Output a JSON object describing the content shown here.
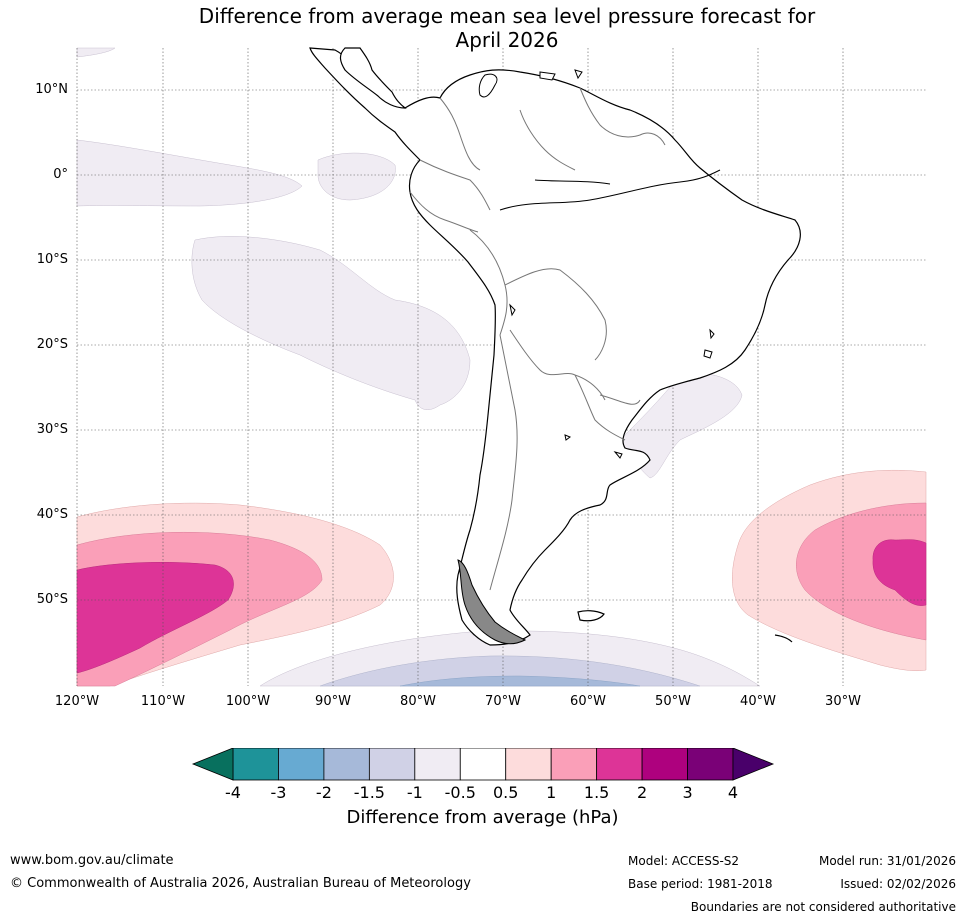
{
  "title_line1": "Difference from average mean sea level pressure forecast for",
  "title_line2": "April 2026",
  "lat_labels": [
    "10°N",
    "0°",
    "10°S",
    "20°S",
    "30°S",
    "40°S",
    "50°S"
  ],
  "lon_labels": [
    "120°W",
    "110°W",
    "100°W",
    "90°W",
    "80°W",
    "70°W",
    "60°W",
    "50°W",
    "40°W",
    "30°W"
  ],
  "colorbar": {
    "ticks": [
      "-4",
      "-3",
      "-2",
      "-1.5",
      "-1",
      "-0.5",
      "0.5",
      "1",
      "1.5",
      "2",
      "3",
      "4"
    ],
    "colors": [
      "#1e9399",
      "#67aad2",
      "#a6b9d9",
      "#d0d1e6",
      "#f0ecf3",
      "#ffffff",
      "#fddcdc",
      "#fa9fb8",
      "#dd3497",
      "#ae017e",
      "#7a0177"
    ],
    "under_color": "#08705e",
    "over_color": "#49006a",
    "label": "Difference from average (hPa)"
  },
  "footer": {
    "website": "www.bom.gov.au/climate",
    "copyright": "© Commonwealth of Australia 2026, Australian Bureau of Meteorology",
    "model": "Model: ACCESS-S2",
    "base_period": "Base period: 1981-2018",
    "model_run": "Model run: 31/01/2026",
    "issued": "Issued: 02/02/2026",
    "disclaimer": "Boundaries are not considered authoritative"
  }
}
